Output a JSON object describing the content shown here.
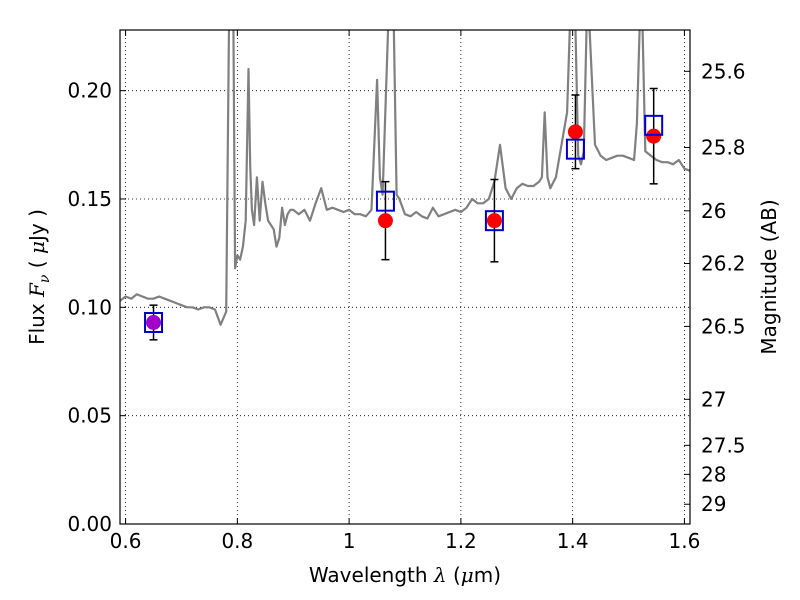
{
  "chart_data": {
    "type": "scatter",
    "xlabel_parts": [
      "Wavelength  ",
      "λ",
      " (",
      "μ",
      "m)"
    ],
    "ylabel_parts": [
      "Flux  ",
      "F",
      "ν",
      "  ( ",
      "μ",
      "Jy )"
    ],
    "y2label": "Magnitude (AB)",
    "xlim": [
      0.59,
      1.61
    ],
    "ylim": [
      0.0,
      0.228
    ],
    "grid": true,
    "x_ticks": [
      0.6,
      0.8,
      1.0,
      1.2,
      1.4,
      1.6
    ],
    "x_tick_labels": [
      "0.6",
      "0.8",
      "1",
      "1.2",
      "1.4",
      "1.6"
    ],
    "y_ticks": [
      0.0,
      0.05,
      0.1,
      0.15,
      0.2
    ],
    "y_tick_labels": [
      "0.00",
      "0.05",
      "0.10",
      "0.15",
      "0.20"
    ],
    "mag_ticks": [
      25.6,
      25.8,
      26,
      26.2,
      26.5,
      27,
      27.5,
      28,
      29
    ],
    "mag_tick_labels": [
      "25.6",
      "25.8",
      "26",
      "26.2",
      "26.5",
      "27",
      "27.5",
      "28",
      "29"
    ],
    "series": [
      {
        "kind": "spectrum",
        "color": "#808080",
        "x": [
          0.59,
          0.6,
          0.61,
          0.62,
          0.63,
          0.64,
          0.65,
          0.66,
          0.67,
          0.68,
          0.69,
          0.7,
          0.71,
          0.72,
          0.73,
          0.74,
          0.75,
          0.76,
          0.77,
          0.78,
          0.785,
          0.79,
          0.793,
          0.796,
          0.8,
          0.805,
          0.81,
          0.815,
          0.82,
          0.823,
          0.826,
          0.83,
          0.835,
          0.84,
          0.845,
          0.85,
          0.855,
          0.86,
          0.865,
          0.87,
          0.875,
          0.88,
          0.885,
          0.89,
          0.895,
          0.9,
          0.91,
          0.92,
          0.93,
          0.94,
          0.95,
          0.96,
          0.97,
          0.98,
          0.99,
          1.0,
          1.01,
          1.02,
          1.03,
          1.04,
          1.05,
          1.055,
          1.06,
          1.07,
          1.075,
          1.08,
          1.085,
          1.09,
          1.1,
          1.11,
          1.12,
          1.13,
          1.14,
          1.15,
          1.16,
          1.17,
          1.18,
          1.19,
          1.2,
          1.21,
          1.22,
          1.23,
          1.24,
          1.25,
          1.26,
          1.27,
          1.28,
          1.29,
          1.3,
          1.31,
          1.32,
          1.33,
          1.34,
          1.345,
          1.35,
          1.355,
          1.36,
          1.37,
          1.38,
          1.39,
          1.395,
          1.4,
          1.405,
          1.41,
          1.415,
          1.42,
          1.425,
          1.43,
          1.44,
          1.45,
          1.46,
          1.47,
          1.48,
          1.49,
          1.5,
          1.51,
          1.515,
          1.52,
          1.525,
          1.53,
          1.54,
          1.55,
          1.56,
          1.57,
          1.58,
          1.59,
          1.6,
          1.61
        ],
        "y": [
          0.103,
          0.105,
          0.104,
          0.106,
          0.105,
          0.104,
          0.104,
          0.105,
          0.104,
          0.103,
          0.102,
          0.101,
          0.1,
          0.1,
          0.099,
          0.1,
          0.1,
          0.099,
          0.092,
          0.098,
          0.23,
          0.23,
          0.23,
          0.118,
          0.124,
          0.122,
          0.128,
          0.14,
          0.21,
          0.165,
          0.145,
          0.138,
          0.16,
          0.14,
          0.158,
          0.148,
          0.14,
          0.138,
          0.136,
          0.128,
          0.132,
          0.146,
          0.138,
          0.143,
          0.145,
          0.145,
          0.143,
          0.145,
          0.14,
          0.148,
          0.155,
          0.145,
          0.146,
          0.145,
          0.144,
          0.145,
          0.143,
          0.143,
          0.142,
          0.145,
          0.205,
          0.16,
          0.152,
          0.23,
          0.23,
          0.23,
          0.152,
          0.15,
          0.143,
          0.142,
          0.144,
          0.142,
          0.141,
          0.146,
          0.142,
          0.143,
          0.144,
          0.145,
          0.144,
          0.146,
          0.15,
          0.148,
          0.148,
          0.15,
          0.158,
          0.175,
          0.155,
          0.15,
          0.155,
          0.157,
          0.156,
          0.156,
          0.158,
          0.16,
          0.19,
          0.16,
          0.155,
          0.16,
          0.175,
          0.19,
          0.23,
          0.23,
          0.23,
          0.17,
          0.166,
          0.172,
          0.23,
          0.23,
          0.175,
          0.17,
          0.168,
          0.169,
          0.17,
          0.17,
          0.169,
          0.168,
          0.185,
          0.23,
          0.23,
          0.172,
          0.17,
          0.168,
          0.167,
          0.167,
          0.166,
          0.168,
          0.164,
          0.163
        ]
      },
      {
        "kind": "model-photometry",
        "marker": "open-square",
        "color": "#0000cc",
        "x": [
          0.65,
          1.065,
          1.26,
          1.405,
          1.545
        ],
        "y": [
          0.093,
          0.149,
          0.14,
          0.173,
          0.184
        ]
      },
      {
        "kind": "observed-photometry",
        "marker": "filled-circle",
        "color": "#ff0000",
        "first_point_color": "#a000c8",
        "x": [
          0.65,
          1.065,
          1.26,
          1.405,
          1.545
        ],
        "y": [
          0.093,
          0.14,
          0.14,
          0.181,
          0.179
        ],
        "err": [
          0.008,
          0.018,
          0.019,
          0.017,
          0.022
        ]
      }
    ]
  }
}
